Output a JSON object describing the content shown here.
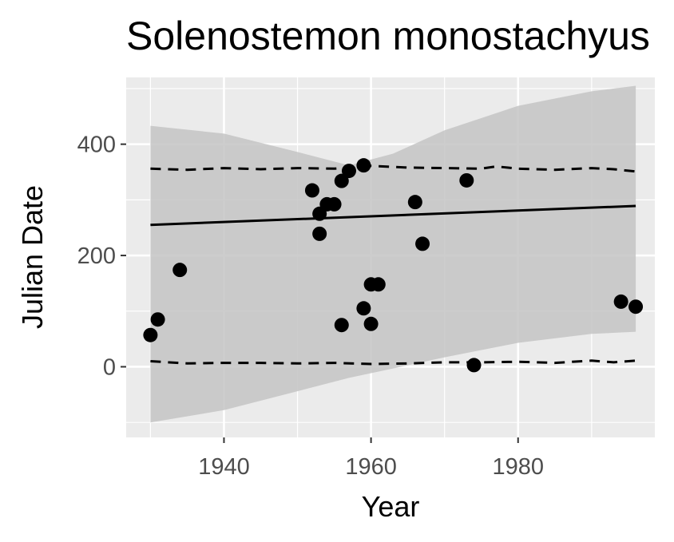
{
  "chart_data": {
    "type": "scatter",
    "title": "Solenostemon monostachyus",
    "xlabel": "Year",
    "ylabel": "Julian Date",
    "xlim": [
      1926.7,
      1998.6
    ],
    "ylim": [
      -127,
      520
    ],
    "x_ticks": [
      1940,
      1960,
      1980
    ],
    "y_ticks": [
      0,
      200,
      400
    ],
    "x_tick_labels": [
      "1940",
      "1960",
      "1980"
    ],
    "y_tick_labels": [
      "0",
      "200",
      "400"
    ],
    "grid": true,
    "legend": "none",
    "colors": {
      "panel": "#ebebeb",
      "grid": "#ffffff",
      "ribbon": "#c4c4c4",
      "points": "#000000",
      "fit_line": "#000000"
    },
    "points": [
      {
        "x": 1930,
        "y": 57
      },
      {
        "x": 1931,
        "y": 85
      },
      {
        "x": 1934,
        "y": 174
      },
      {
        "x": 1952,
        "y": 317
      },
      {
        "x": 1953,
        "y": 239
      },
      {
        "x": 1953,
        "y": 275
      },
      {
        "x": 1954,
        "y": 292
      },
      {
        "x": 1955,
        "y": 292
      },
      {
        "x": 1956,
        "y": 334
      },
      {
        "x": 1956,
        "y": 75
      },
      {
        "x": 1957,
        "y": 352
      },
      {
        "x": 1959,
        "y": 362
      },
      {
        "x": 1959,
        "y": 105
      },
      {
        "x": 1960,
        "y": 148
      },
      {
        "x": 1960,
        "y": 77
      },
      {
        "x": 1961,
        "y": 148
      },
      {
        "x": 1966,
        "y": 296
      },
      {
        "x": 1967,
        "y": 221
      },
      {
        "x": 1973,
        "y": 335
      },
      {
        "x": 1974,
        "y": 3
      },
      {
        "x": 1994,
        "y": 117
      },
      {
        "x": 1996,
        "y": 108
      }
    ],
    "fit_line": [
      {
        "x": 1930,
        "y": 255
      },
      {
        "x": 1996,
        "y": 289
      }
    ],
    "confidence_band": {
      "x": [
        1930,
        1940,
        1950,
        1957,
        1963,
        1970,
        1980,
        1990,
        1996
      ],
      "upper": [
        433,
        419,
        386,
        362,
        383,
        425,
        469,
        495,
        505
      ],
      "lower": [
        -100,
        -78,
        -44,
        -20,
        -3,
        17,
        43,
        59,
        63
      ]
    },
    "upper_quantile": {
      "x": [
        1930,
        1935,
        1940,
        1945,
        1950,
        1955,
        1960,
        1965,
        1970,
        1975,
        1977,
        1980,
        1985,
        1990,
        1993,
        1996
      ],
      "y": [
        356,
        354,
        357,
        355,
        357,
        356,
        361,
        358,
        357,
        356,
        360,
        356,
        354,
        357,
        355,
        351
      ]
    },
    "lower_quantile": {
      "x": [
        1930,
        1935,
        1940,
        1945,
        1950,
        1955,
        1960,
        1965,
        1970,
        1975,
        1980,
        1985,
        1990,
        1993,
        1996
      ],
      "y": [
        10,
        6,
        7,
        7,
        6,
        7,
        5,
        6,
        8,
        8,
        9,
        7,
        11,
        8,
        11
      ]
    }
  }
}
